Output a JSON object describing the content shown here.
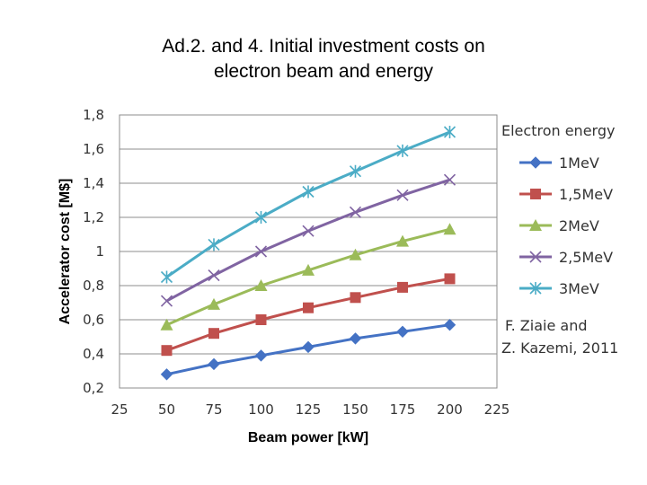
{
  "title_lines": [
    "Ad.2. and 4. Initial investment costs on",
    "electron beam and energy"
  ],
  "chart_data": {
    "type": "line",
    "xlabel": "Beam power [kW]",
    "ylabel": "Accelerator cost [M$]",
    "xlim": [
      25,
      225
    ],
    "ylim": [
      0.2,
      1.8
    ],
    "x_ticks": [
      "25",
      "50",
      "75",
      "100",
      "125",
      "150",
      "175",
      "200",
      "225"
    ],
    "y_ticks": [
      "0,2",
      "0,4",
      "0,6",
      "0,8",
      "1",
      "1,2",
      "1,4",
      "1,6",
      "1,8"
    ],
    "grid": "horizontal",
    "x": [
      50,
      75,
      100,
      125,
      150,
      175,
      200
    ],
    "legend_title": "Electron energy",
    "legend_position": "right",
    "series": [
      {
        "name": "1MeV",
        "color": "#4472C4",
        "marker": "diamond",
        "values": [
          0.28,
          0.34,
          0.39,
          0.44,
          0.49,
          0.53,
          0.57
        ]
      },
      {
        "name": "1,5MeV",
        "color": "#C0504D",
        "marker": "square",
        "values": [
          0.42,
          0.52,
          0.6,
          0.67,
          0.73,
          0.79,
          0.84
        ]
      },
      {
        "name": "2MeV",
        "color": "#9BBB59",
        "marker": "triangle",
        "values": [
          0.57,
          0.69,
          0.8,
          0.89,
          0.98,
          1.06,
          1.13
        ]
      },
      {
        "name": "2,5MeV",
        "color": "#8064A2",
        "marker": "x",
        "values": [
          0.71,
          0.86,
          1.0,
          1.12,
          1.23,
          1.33,
          1.42
        ]
      },
      {
        "name": "3MeV",
        "color": "#4BACC6",
        "marker": "star",
        "values": [
          0.85,
          1.04,
          1.2,
          1.35,
          1.47,
          1.59,
          1.7
        ]
      }
    ],
    "annotation": [
      "F. Ziaie and",
      "Z. Kazemi, 2011"
    ]
  }
}
